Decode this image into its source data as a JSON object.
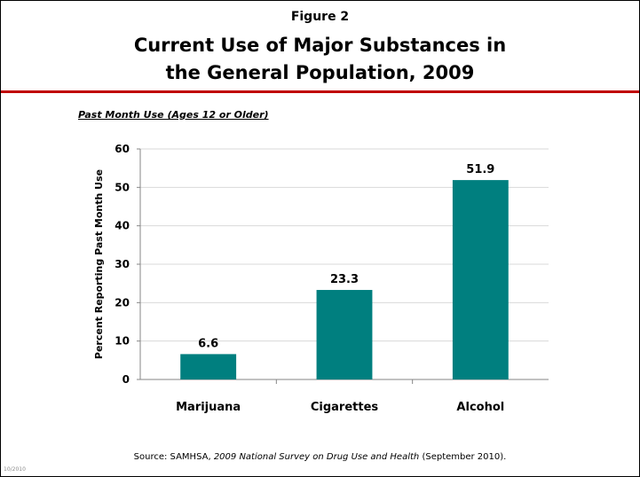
{
  "figure_label": "Figure 2",
  "title_line1": "Current Use of Major Substances in",
  "title_line2": "the General Population, 2009",
  "subtitle": "Past Month Use (Ages 12 or Older)",
  "source_prefix": "Source:  SAMHSA, ",
  "source_title": "2009 National Survey on Drug Use and Health",
  "source_suffix": " (September 2010).",
  "date_stamp": "10/2010",
  "colors": {
    "bar": "#007f7f",
    "rule": "#c00000",
    "grid": "#d9d9d9"
  },
  "chart_data": {
    "type": "bar",
    "categories": [
      "Marijuana",
      "Cigarettes",
      "Alcohol"
    ],
    "values": [
      6.6,
      23.3,
      51.9
    ],
    "data_labels": [
      "6.6",
      "23.3",
      "51.9"
    ],
    "title": "",
    "xlabel": "",
    "ylabel": "Percent Reporting Past Month Use",
    "ylim": [
      0,
      60
    ],
    "yticks": [
      0,
      10,
      20,
      30,
      40,
      50,
      60
    ],
    "ytick_labels": [
      "0",
      "10",
      "20",
      "30",
      "40",
      "50",
      "60"
    ],
    "grid": true,
    "legend": "none"
  }
}
